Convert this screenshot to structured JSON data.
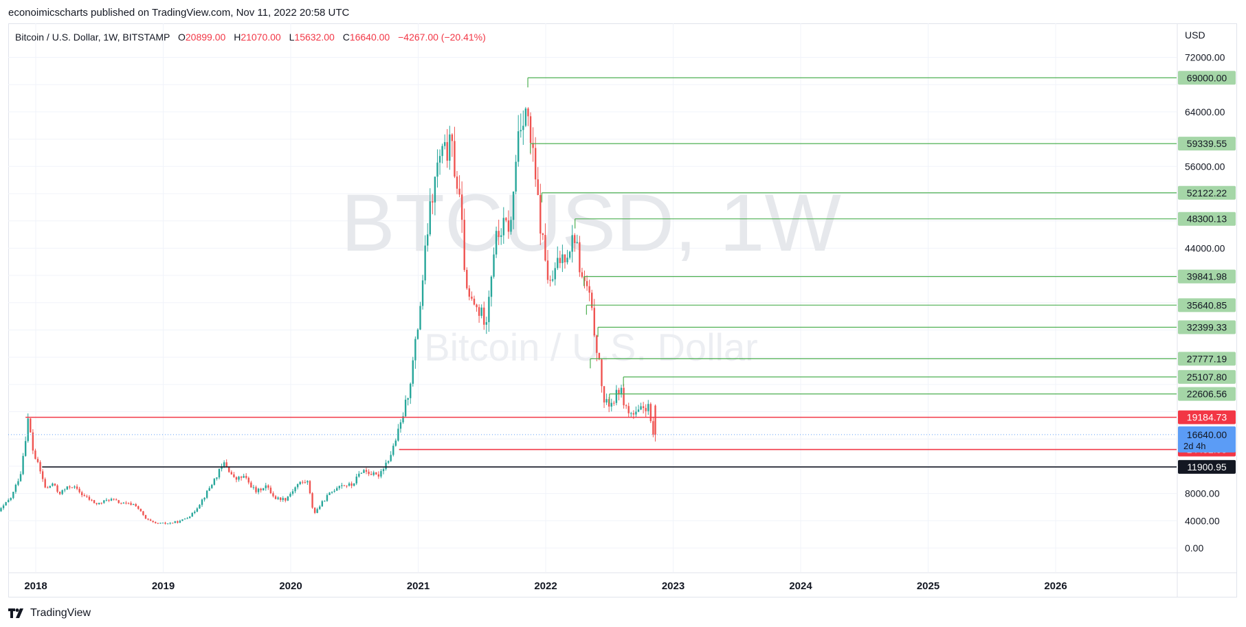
{
  "header": {
    "published_text": "econoimicscharts published on TradingView.com, Nov 11, 2022 20:58 UTC"
  },
  "legend": {
    "symbol": "Bitcoin / U.S. Dollar, 1W, BITSTAMP",
    "open_key": "O",
    "open": "20899.00",
    "high_key": "H",
    "high": "21070.00",
    "low_key": "L",
    "low": "15632.00",
    "close_key": "C",
    "close": "16640.00",
    "change": "−4267.00 (−20.41%)"
  },
  "watermark": {
    "line1": "BTCUSD, 1W",
    "line2": "Bitcoin / U.S. Dollar"
  },
  "price_axis": {
    "currency": "USD",
    "ticks": [
      "72000.00",
      "64000.00",
      "56000.00",
      "44000.00",
      "8000.00",
      "4000.00",
      "0.00"
    ]
  },
  "time_axis": {
    "labels": [
      "2018",
      "2019",
      "2020",
      "2021",
      "2022",
      "2023",
      "2024",
      "2025",
      "2026"
    ]
  },
  "countdown": "2d 4h",
  "footer": {
    "brand": "TradingView"
  },
  "colors": {
    "up": "#26a69a",
    "down": "#ef5350",
    "green_level": "#4caf50",
    "green_label": "#a5d6a7",
    "red_level": "#f23645",
    "black_level": "#131722",
    "current_price": "#5b9cf6",
    "grid": "#f0f3fa"
  },
  "chart_data": {
    "type": "candlestick",
    "title": "Bitcoin / U.S. Dollar, 1W, BITSTAMP",
    "ylim": [
      -3000,
      75000
    ],
    "y_scale": "linear",
    "grid": true,
    "current_price": 16640.0,
    "ohlc_last": {
      "open": 20899.0,
      "high": 21070.0,
      "low": 15632.0,
      "close": 16640.0
    },
    "levels": [
      {
        "price": 69000.0,
        "label": "69000.00",
        "start": 2021.86,
        "kind": "resistance"
      },
      {
        "price": 59339.55,
        "label": "59339.55",
        "start": 2021.88,
        "kind": "resistance"
      },
      {
        "price": 52122.22,
        "label": "52122.22",
        "start": 2021.97,
        "kind": "resistance"
      },
      {
        "price": 48300.13,
        "label": "48300.13",
        "start": 2022.23,
        "kind": "resistance"
      },
      {
        "price": 39841.98,
        "label": "39841.98",
        "start": 2022.3,
        "kind": "resistance"
      },
      {
        "price": 35640.85,
        "label": "35640.85",
        "start": 2022.32,
        "kind": "resistance"
      },
      {
        "price": 32399.33,
        "label": "32399.33",
        "start": 2022.41,
        "kind": "resistance"
      },
      {
        "price": 27777.19,
        "label": "27777.19",
        "start": 2022.35,
        "kind": "resistance"
      },
      {
        "price": 25107.8,
        "label": "25107.80",
        "start": 2022.61,
        "kind": "resistance"
      },
      {
        "price": 22606.56,
        "label": "22606.56",
        "start": 2022.5,
        "kind": "resistance"
      },
      {
        "price": 19184.73,
        "label": "19184.73",
        "start": 2017.92,
        "kind": "support-red"
      },
      {
        "price": 14452.93,
        "label": "14452.93",
        "start": 2020.85,
        "kind": "support-red"
      },
      {
        "price": 11900.95,
        "label": "11900.95",
        "start": 2018.05,
        "kind": "support-black"
      }
    ],
    "price_path": [
      [
        2017.67,
        4200
      ],
      [
        2017.75,
        5800
      ],
      [
        2017.83,
        7500
      ],
      [
        2017.9,
        11000
      ],
      [
        2017.96,
        19000
      ],
      [
        2018.0,
        14000
      ],
      [
        2018.05,
        11500
      ],
      [
        2018.1,
        8500
      ],
      [
        2018.15,
        9500
      ],
      [
        2018.2,
        8000
      ],
      [
        2018.3,
        9200
      ],
      [
        2018.4,
        7600
      ],
      [
        2018.5,
        6400
      ],
      [
        2018.6,
        7200
      ],
      [
        2018.7,
        6500
      ],
      [
        2018.8,
        6400
      ],
      [
        2018.88,
        4300
      ],
      [
        2018.95,
        3600
      ],
      [
        2019.05,
        3600
      ],
      [
        2019.15,
        3900
      ],
      [
        2019.25,
        5000
      ],
      [
        2019.35,
        7800
      ],
      [
        2019.45,
        11000
      ],
      [
        2019.5,
        12500
      ],
      [
        2019.58,
        10000
      ],
      [
        2019.65,
        10500
      ],
      [
        2019.75,
        8200
      ],
      [
        2019.82,
        9200
      ],
      [
        2019.9,
        7300
      ],
      [
        2019.98,
        7200
      ],
      [
        2020.08,
        9500
      ],
      [
        2020.15,
        9800
      ],
      [
        2020.2,
        5000
      ],
      [
        2020.3,
        7500
      ],
      [
        2020.4,
        9300
      ],
      [
        2020.5,
        9200
      ],
      [
        2020.58,
        11500
      ],
      [
        2020.7,
        10500
      ],
      [
        2020.8,
        13500
      ],
      [
        2020.88,
        18000
      ],
      [
        2020.95,
        23500
      ],
      [
        2021.02,
        33000
      ],
      [
        2021.1,
        48000
      ],
      [
        2021.18,
        57000
      ],
      [
        2021.28,
        59000
      ],
      [
        2021.35,
        50000
      ],
      [
        2021.4,
        37000
      ],
      [
        2021.48,
        35000
      ],
      [
        2021.55,
        33500
      ],
      [
        2021.62,
        45000
      ],
      [
        2021.68,
        47000
      ],
      [
        2021.75,
        47500
      ],
      [
        2021.8,
        61000
      ],
      [
        2021.86,
        65000
      ],
      [
        2021.92,
        57000
      ],
      [
        2021.98,
        47000
      ],
      [
        2022.05,
        38000
      ],
      [
        2022.12,
        42000
      ],
      [
        2022.2,
        44000
      ],
      [
        2022.25,
        46000
      ],
      [
        2022.3,
        39500
      ],
      [
        2022.35,
        38000
      ],
      [
        2022.42,
        29500
      ],
      [
        2022.48,
        21000
      ],
      [
        2022.55,
        21500
      ],
      [
        2022.6,
        23500
      ],
      [
        2022.66,
        20000
      ],
      [
        2022.72,
        19400
      ],
      [
        2022.78,
        20500
      ],
      [
        2022.82,
        20900
      ],
      [
        2022.86,
        16640
      ]
    ]
  }
}
